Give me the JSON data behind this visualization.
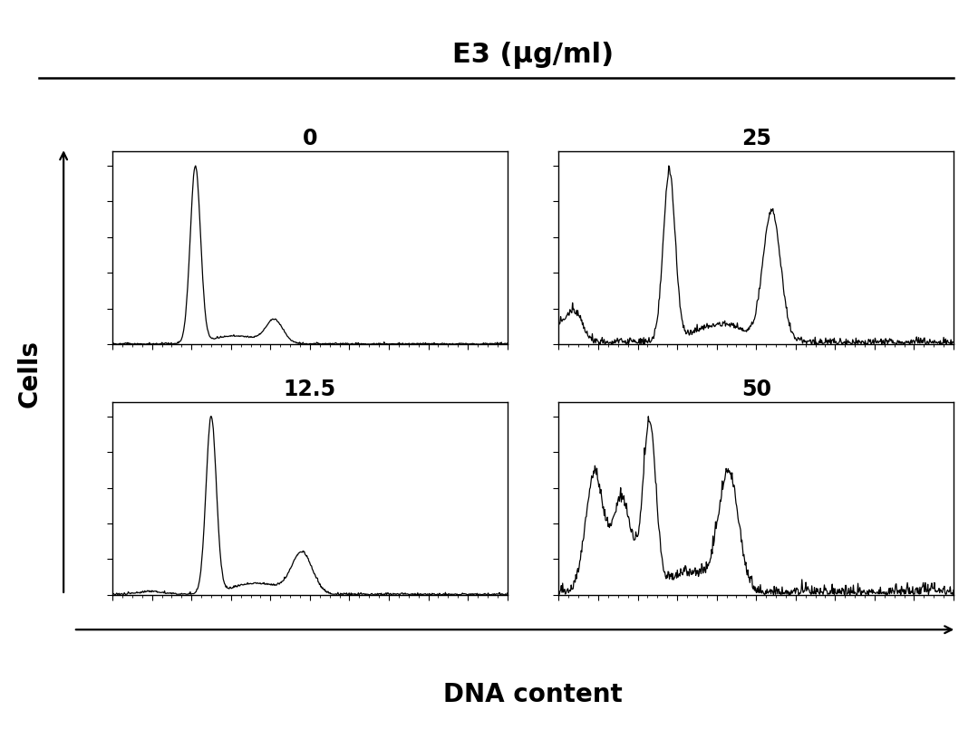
{
  "title": "E3 (μg/ml)",
  "xlabel": "DNA content",
  "ylabel": "Cells",
  "background_color": "#ffffff",
  "line_color": "#000000",
  "title_fontsize": 22,
  "label_fontsize": 20,
  "panel_label_fontsize": 17
}
